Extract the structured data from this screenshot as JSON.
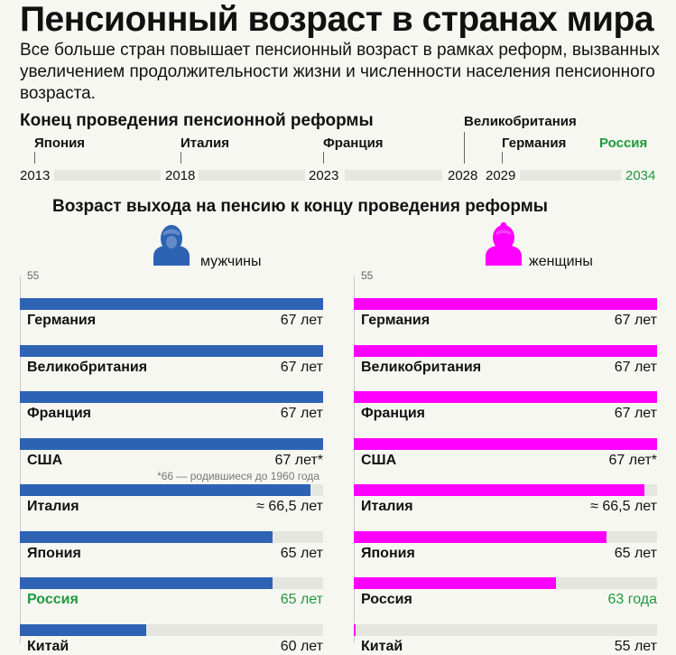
{
  "header": {
    "title": "Пенсионный возраст в странах мира",
    "subtitle": "Все больше стран повышает пенсионный возраст в рамках реформ, вызванных увеличением продолжительности жизни и численности населения пенсионного возраста."
  },
  "timeline": {
    "title": "Конец проведения пенсионной реформы",
    "years": [
      "2013",
      "2018",
      "2023",
      "2028",
      "2029",
      "2034"
    ],
    "countries": [
      {
        "name": "Япония",
        "year": "2018"
      },
      {
        "name": "Италия",
        "year": "2023"
      },
      {
        "name": "Франция",
        "year": "2028"
      },
      {
        "name": "Великобритания",
        "year": "2028"
      },
      {
        "name": "Германия",
        "year": "2029"
      },
      {
        "name": "Россия",
        "year": "2034"
      }
    ]
  },
  "colors": {
    "men": "#2e63b4",
    "women": "#ff00ff",
    "russia": "#1f9a3c",
    "track": "#e6e6e0"
  },
  "chart_data": {
    "type": "bar",
    "title": "Возраст выхода на пенсию к концу проведения реформы",
    "axis_start_label": "55",
    "xlim": [
      55,
      67
    ],
    "categories": [
      "Германия",
      "Великобритания",
      "Франция",
      "США",
      "Италия",
      "Япония",
      "Россия",
      "Китай"
    ],
    "series": [
      {
        "name": "мужчины",
        "icon": "man-icon",
        "values": [
          67,
          67,
          67,
          67,
          66.5,
          65,
          65,
          60
        ],
        "labels": [
          "67 лет",
          "67 лет",
          "67 лет",
          "67 лет*",
          "≈ 66,5 лет",
          "65 лет",
          "65 лет",
          "60 лет"
        ]
      },
      {
        "name": "женщины",
        "icon": "woman-icon",
        "values": [
          67,
          67,
          67,
          67,
          66.5,
          65,
          63,
          55
        ],
        "labels": [
          "67 лет",
          "67 лет",
          "67 лет",
          "67 лет*",
          "≈ 66,5 лет",
          "65 лет",
          "63 года",
          "55 лет"
        ]
      }
    ],
    "highlight_category": "Россия",
    "footnote": "*66 — родившиеся до 1960 года"
  }
}
